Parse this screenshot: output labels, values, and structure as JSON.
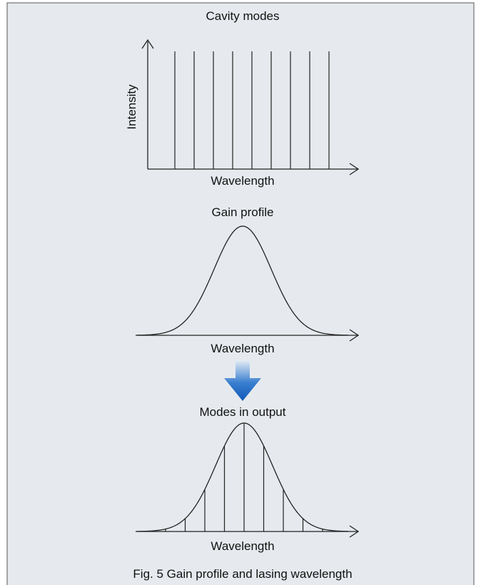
{
  "panels": [
    {
      "title": "Cavity modes",
      "y_label": "Intensity",
      "x_label": "Wavelength"
    },
    {
      "title": "Gain profile",
      "x_label": "Wavelength"
    },
    {
      "title": "Modes in output",
      "x_label": "Wavelength"
    }
  ],
  "caption": "Fig. 5  Gain profile and lasing wavelength"
}
